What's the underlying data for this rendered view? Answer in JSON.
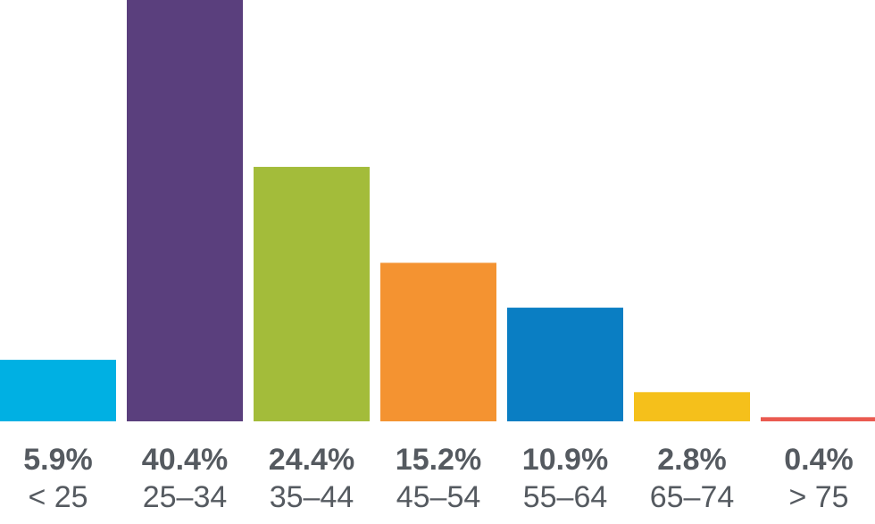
{
  "chart_data": {
    "type": "bar",
    "title": "",
    "xlabel": "",
    "ylabel": "",
    "categories": [
      "< 25",
      "25–34",
      "35–44",
      "45–54",
      "55–64",
      "65–74",
      "> 75"
    ],
    "values": [
      5.9,
      40.4,
      24.4,
      15.2,
      10.9,
      2.8,
      0.4
    ],
    "value_labels": [
      "5.9%",
      "40.4%",
      "24.4%",
      "15.2%",
      "10.9%",
      "2.8%",
      "0.4%"
    ],
    "unit": "%",
    "ylim": [
      0,
      40.4
    ],
    "grid": false,
    "legend": "none",
    "colors": [
      "#00b0e3",
      "#5a3f7d",
      "#a3bc3a",
      "#f49331",
      "#0a7ec3",
      "#f5c01b",
      "#ea5a50"
    ]
  }
}
